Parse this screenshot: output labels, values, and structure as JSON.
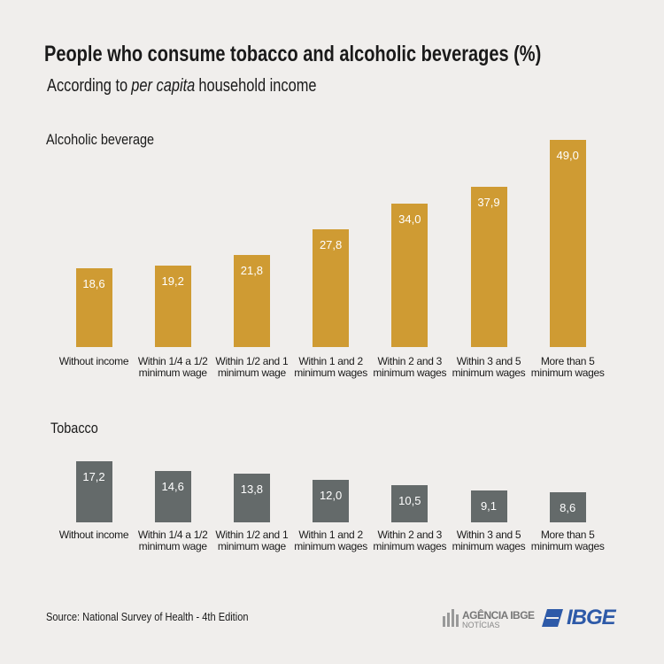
{
  "title": "People who consume tobacco and alcoholic beverages (%)",
  "subtitle": [
    "According to",
    "per capita",
    "household income"
  ],
  "source": "Source: National Survey of Health - 4th Edition",
  "logos": {
    "agency": "AGÊNCIA IBGE",
    "agency_sub": "NOTÍCIAS",
    "ibge": "IBGE"
  },
  "chart_data": [
    {
      "type": "bar",
      "title": "Alcoholic beverage",
      "color": "#cf9b33",
      "categories": [
        "Without income",
        "Within 1/4 a 1/2 minimum wage",
        "Within 1/2 and 1 minimum wage",
        "Within 1 and 2 minimum wages",
        "Within 2 and 3 minimum wages",
        "Within 3 and 5 minimum wages",
        "More than 5 minimum wages"
      ],
      "values": [
        18.6,
        19.2,
        21.8,
        27.8,
        34.0,
        37.9,
        49.0
      ],
      "value_labels": [
        "18,6",
        "19,2",
        "21,8",
        "27,8",
        "34,0",
        "37,9",
        "49,0"
      ]
    },
    {
      "type": "bar",
      "title": "Tobacco",
      "color": "#646a6a",
      "categories": [
        "Without income",
        "Within 1/4 a 1/2 minimum wage",
        "Within 1/2 and 1 minimum wage",
        "Within 1 and 2 minimum wages",
        "Within 2 and 3 minimum wages",
        "Within 3 and 5 minimum wages",
        "More than 5 minimum wages"
      ],
      "values": [
        17.2,
        14.6,
        13.8,
        12.0,
        10.5,
        9.1,
        8.6
      ],
      "value_labels": [
        "17,2",
        "14,6",
        "13,8",
        "12,0",
        "10,5",
        "9,1",
        "8,6"
      ]
    }
  ]
}
